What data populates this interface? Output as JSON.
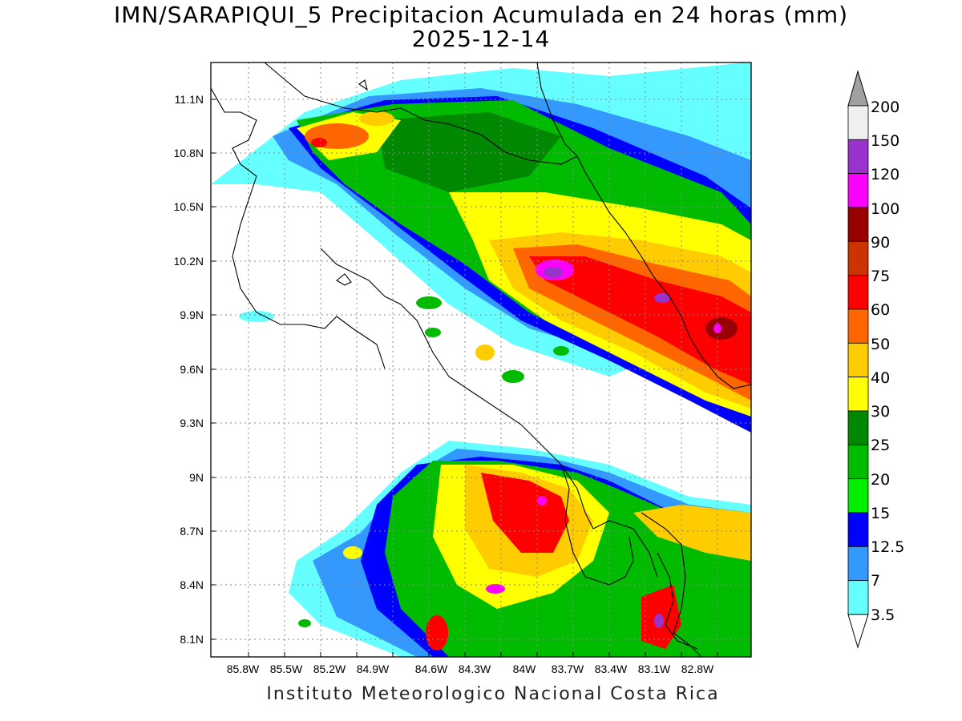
{
  "title": {
    "line1": "IMN/SARAPIQUI_5 Precipitacion Acumulada en 24 horas (mm)",
    "line2": "2025-12-14"
  },
  "map": {
    "lon_ticks": [
      "85.8W",
      "85.5W",
      "85.2W",
      "84.9W",
      "84.6W",
      "84.3W",
      "84W",
      "83.7W",
      "83.4W",
      "83.1W",
      "82.8W"
    ],
    "lat_ticks": [
      "11.1N",
      "10.8N",
      "10.5N",
      "10.2N",
      "9.9N",
      "9.6N",
      "9.3N",
      "9N",
      "8.7N",
      "8.4N",
      "8.1N"
    ]
  },
  "colorbar": {
    "labels": [
      "200",
      "150",
      "120",
      "100",
      "90",
      "75",
      "60",
      "50",
      "40",
      "30",
      "25",
      "20",
      "15",
      "12.5",
      "7",
      "3.5"
    ],
    "colors_top_to_bottom": [
      "#a0a0a0",
      "#f0f0f0",
      "#9933cc",
      "#ff00ff",
      "#990000",
      "#cc3300",
      "#ff0000",
      "#ff6600",
      "#ffcc00",
      "#ffff00",
      "#008800",
      "#00bb00",
      "#00ee00",
      "#0000ff",
      "#3399ff",
      "#66ffff",
      "#ffffff"
    ]
  },
  "footer": "Instituto Meteorologico Nacional Costa Rica"
}
